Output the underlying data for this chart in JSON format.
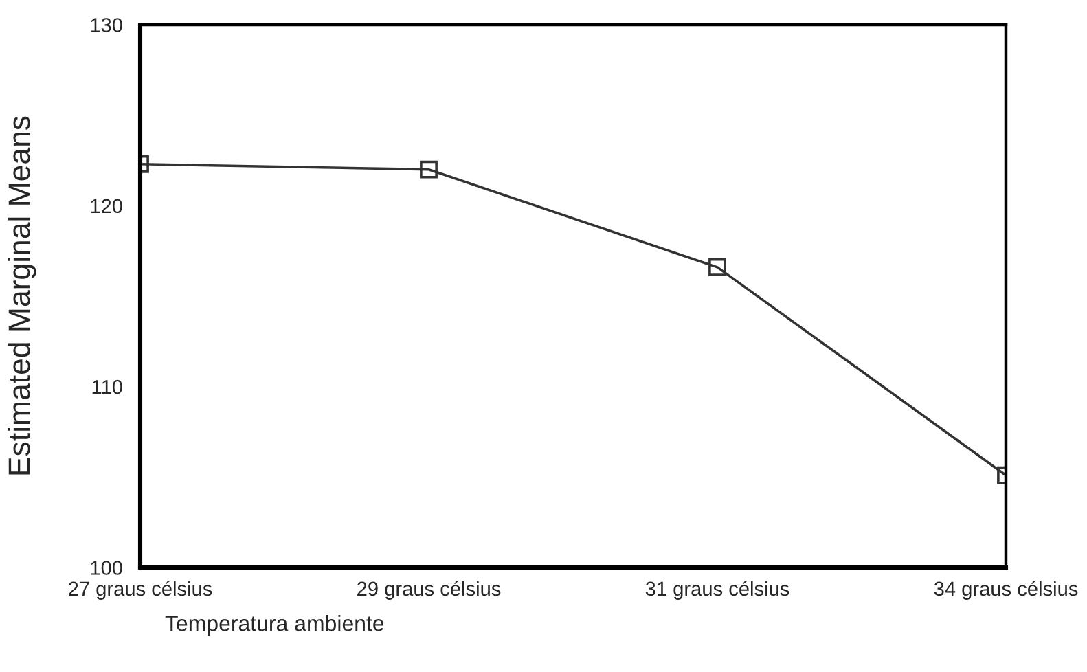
{
  "chart_data": {
    "type": "line",
    "xlabel": "Temperatura ambiente",
    "ylabel": "Estimated Marginal Means",
    "categories": [
      "27 graus célsius",
      "29 graus célsius",
      "31 graus célsius",
      "34 graus célsius"
    ],
    "series": [
      {
        "color": "#333333",
        "values": [
          122.3,
          122.0,
          116.6,
          105.1
        ]
      }
    ],
    "ylim": [
      100,
      130
    ],
    "yticks": [
      100,
      110,
      120,
      130
    ],
    "marker": "square",
    "line_style": "solid",
    "grid": false
  }
}
